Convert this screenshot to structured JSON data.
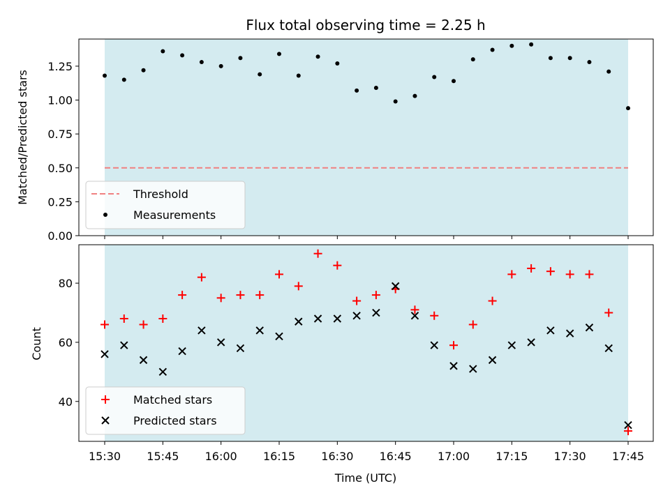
{
  "chart_data": [
    {
      "type": "scatter",
      "title": "Flux total observing time = 2.25 h",
      "ylabel": "Matched/Predicted stars",
      "ylim": [
        0,
        1.45
      ],
      "yticks": [
        "0.00",
        "0.25",
        "0.50",
        "0.75",
        "1.00",
        "1.25"
      ],
      "shaded_span": [
        "15:30",
        "17:45"
      ],
      "threshold": 0.5,
      "legend": {
        "placement": "lower-left",
        "entries": [
          "Threshold",
          "Measurements"
        ]
      },
      "x": [
        "15:30",
        "15:35",
        "15:40",
        "15:45",
        "15:50",
        "15:55",
        "16:00",
        "16:05",
        "16:10",
        "16:15",
        "16:20",
        "16:25",
        "16:30",
        "16:35",
        "16:40",
        "16:45",
        "16:50",
        "16:55",
        "17:00",
        "17:05",
        "17:10",
        "17:15",
        "17:20",
        "17:25",
        "17:30",
        "17:35",
        "17:40",
        "17:45"
      ],
      "series": [
        {
          "name": "Measurements",
          "values": [
            1.18,
            1.15,
            1.22,
            1.36,
            1.33,
            1.28,
            1.25,
            1.31,
            1.19,
            1.34,
            1.18,
            1.32,
            1.27,
            1.07,
            1.09,
            0.99,
            1.03,
            1.17,
            1.14,
            1.3,
            1.37,
            1.4,
            1.41,
            1.31,
            1.31,
            1.28,
            1.21,
            0.94
          ]
        }
      ]
    },
    {
      "type": "scatter",
      "xlabel": "Time (UTC)",
      "ylabel": "Count",
      "ylim": [
        26.5,
        93
      ],
      "yticks": [
        "40",
        "60",
        "80"
      ],
      "xticks": [
        "15:30",
        "15:45",
        "16:00",
        "16:15",
        "16:30",
        "16:45",
        "17:00",
        "17:15",
        "17:30",
        "17:45"
      ],
      "shaded_span": [
        "15:30",
        "17:45"
      ],
      "legend": {
        "placement": "lower-left",
        "entries": [
          "Matched stars",
          "Predicted stars"
        ]
      },
      "x": [
        "15:30",
        "15:35",
        "15:40",
        "15:45",
        "15:50",
        "15:55",
        "16:00",
        "16:05",
        "16:10",
        "16:15",
        "16:20",
        "16:25",
        "16:30",
        "16:35",
        "16:40",
        "16:45",
        "16:50",
        "16:55",
        "17:00",
        "17:05",
        "17:10",
        "17:15",
        "17:20",
        "17:25",
        "17:30",
        "17:35",
        "17:40",
        "17:45"
      ],
      "series": [
        {
          "name": "Matched stars",
          "values": [
            66,
            68,
            66,
            68,
            76,
            82,
            75,
            76,
            76,
            83,
            79,
            90,
            86,
            74,
            76,
            78,
            71,
            69,
            59,
            66,
            74,
            83,
            85,
            84,
            83,
            83,
            70,
            30
          ]
        },
        {
          "name": "Predicted stars",
          "values": [
            56,
            59,
            54,
            50,
            57,
            64,
            60,
            58,
            64,
            62,
            67,
            68,
            68,
            69,
            70,
            79,
            69,
            59,
            52,
            51,
            54,
            59,
            60,
            64,
            63,
            65,
            58,
            32
          ]
        }
      ]
    }
  ],
  "colors": {
    "span": "#d4ebf0",
    "threshold": "#f08080",
    "measurement": "#000000",
    "matched": "#ff0000",
    "predicted": "#000000"
  }
}
